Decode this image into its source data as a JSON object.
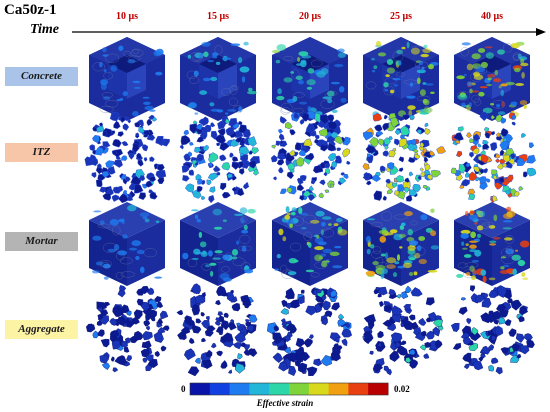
{
  "title": "Ca50z-1",
  "time_label": "Time",
  "times": [
    "10 μs",
    "15 μs",
    "20 μs",
    "25 μs",
    "40 μs"
  ],
  "rows": [
    {
      "label": "Concrete",
      "color": "#a9c4e8",
      "shape": "cut-cube"
    },
    {
      "label": "ITZ",
      "color": "#f7c6a8",
      "shape": "itz"
    },
    {
      "label": "Mortar",
      "color": "#b4b4b4",
      "shape": "cube"
    },
    {
      "label": "Aggregate",
      "color": "#fdf3a4",
      "shape": "aggregate"
    }
  ],
  "damage_levels": [
    [
      0.1,
      0.22,
      0.32,
      0.5,
      0.66
    ],
    [
      0.14,
      0.3,
      0.42,
      0.66,
      0.74
    ],
    [
      0.12,
      0.3,
      0.48,
      0.62,
      0.74
    ],
    [
      0.08,
      0.14,
      0.22,
      0.28,
      0.3
    ]
  ],
  "legend": {
    "min": "0",
    "max": "0.02",
    "title": "Effective strain",
    "colors": [
      "#0a14a8",
      "#1040e0",
      "#1e7bf0",
      "#22b6d8",
      "#2cd6a8",
      "#7ed43a",
      "#d8d81c",
      "#f0a010",
      "#e84010",
      "#b80000"
    ]
  }
}
